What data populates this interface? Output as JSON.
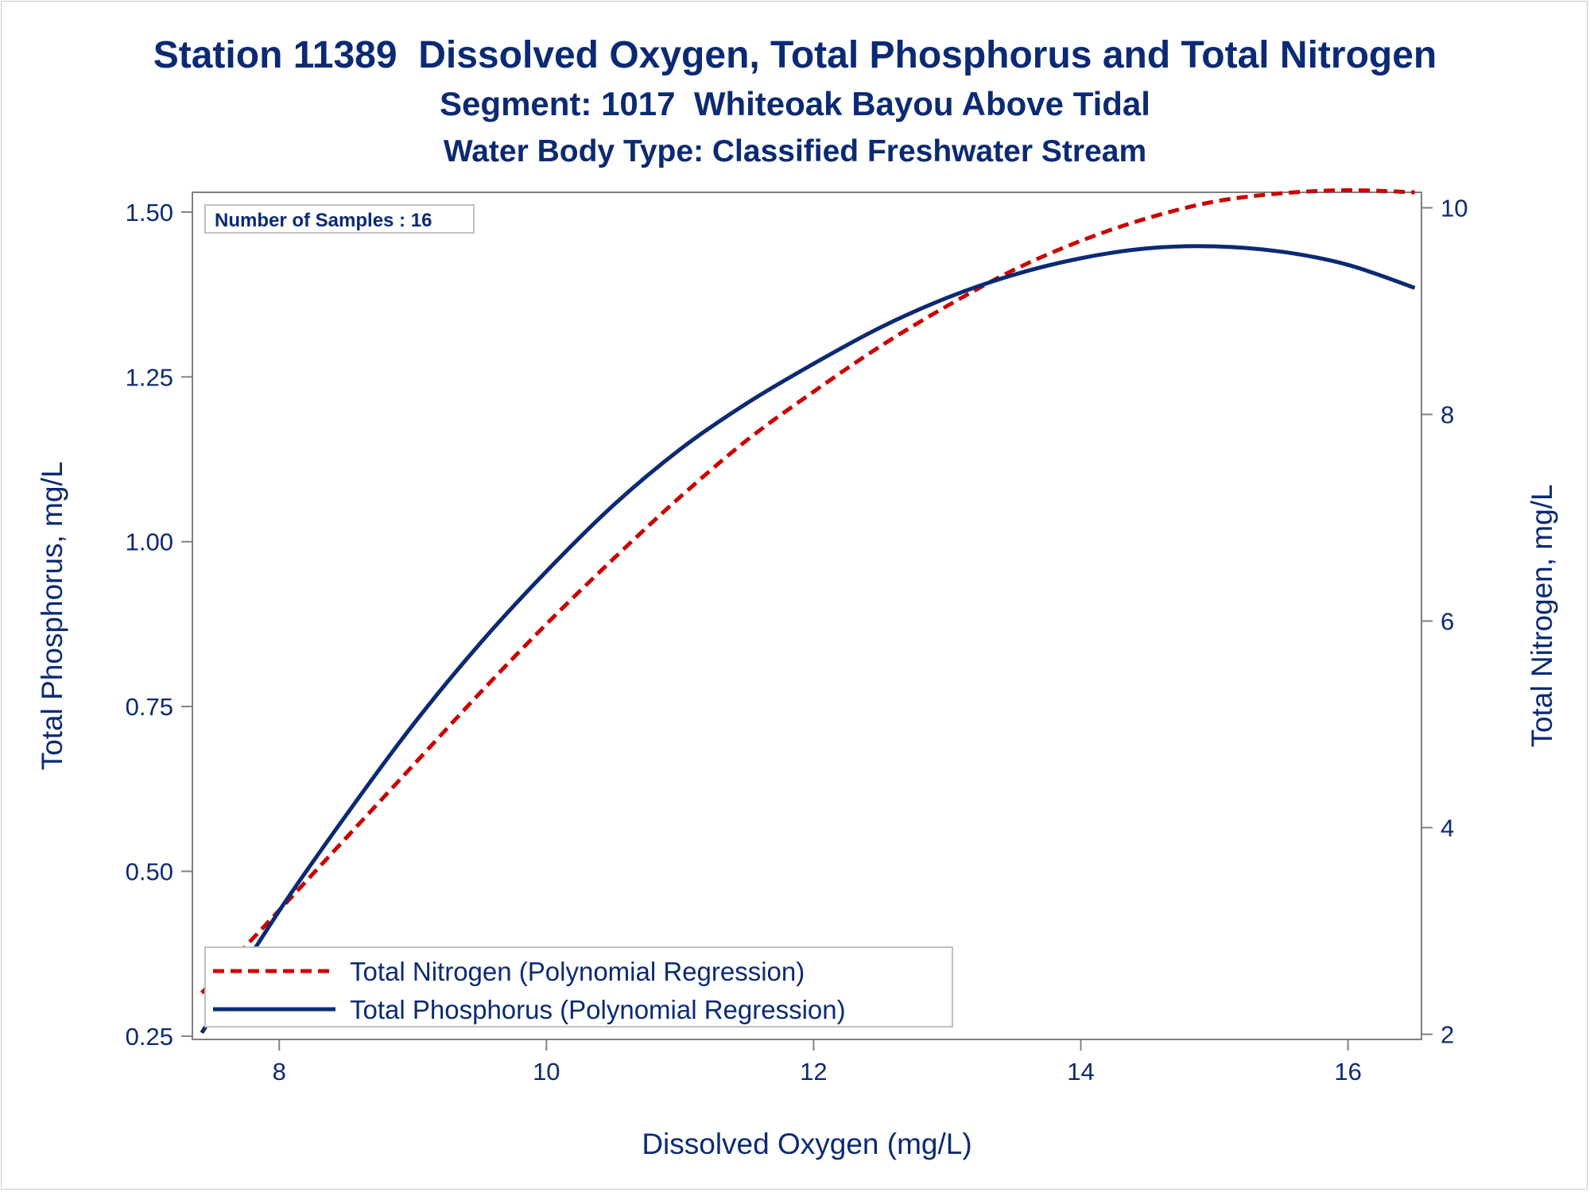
{
  "titles": {
    "line1": "Station 11389  Dissolved Oxygen, Total Phosphorus and Total Nitrogen",
    "line2": "Segment: 1017  Whiteoak Bayou Above Tidal",
    "line3": "Water Body Type: Classified Freshwater Stream"
  },
  "inset": {
    "label": "Number of Samples : 16"
  },
  "colors": {
    "text": "#0b2a73",
    "nitrogen": "#cc0000",
    "phosphorus": "#0b2a73",
    "axis": "#808080"
  },
  "chart_data": {
    "type": "line",
    "xlabel": "Dissolved Oxygen (mg/L)",
    "ylabel": "Total Phosphorus, mg/L",
    "y2label": "Total Nitrogen, mg/L",
    "xlim": [
      7.35,
      16.55
    ],
    "ylim": [
      0.245,
      1.53
    ],
    "y2lim": [
      1.95,
      10.15
    ],
    "xticks": [
      8,
      10,
      12,
      14,
      16
    ],
    "yticks": [
      0.25,
      0.5,
      0.75,
      1.0,
      1.25,
      1.5
    ],
    "ytick_labels": [
      "0.25",
      "0.50",
      "0.75",
      "1.00",
      "1.25",
      "1.50"
    ],
    "y2ticks": [
      2,
      4,
      6,
      8,
      10
    ],
    "grid": false,
    "legend_position": "bottom-left",
    "series": [
      {
        "name": "Total Nitrogen (Polynomial Regression)",
        "axis": "right",
        "style": "dashed",
        "color": "#cc0000",
        "x": [
          7.42,
          8.0,
          8.5,
          9.0,
          9.5,
          10.0,
          10.5,
          11.0,
          11.5,
          12.0,
          12.5,
          13.0,
          13.5,
          14.0,
          14.5,
          15.0,
          15.5,
          16.0,
          16.5
        ],
        "y": [
          2.4,
          3.2,
          3.9,
          4.6,
          5.3,
          5.97,
          6.6,
          7.2,
          7.75,
          8.22,
          8.66,
          9.05,
          9.4,
          9.68,
          9.9,
          10.06,
          10.14,
          10.17,
          10.15
        ]
      },
      {
        "name": "Total Phosphorus (Polynomial Regression)",
        "axis": "left",
        "style": "solid",
        "color": "#0b2a73",
        "x": [
          7.42,
          8.0,
          8.5,
          9.0,
          9.5,
          10.0,
          10.5,
          11.0,
          11.5,
          12.0,
          12.5,
          13.0,
          13.5,
          14.0,
          14.5,
          15.0,
          15.5,
          16.0,
          16.5
        ],
        "y": [
          0.255,
          0.44,
          0.585,
          0.722,
          0.845,
          0.955,
          1.055,
          1.14,
          1.21,
          1.27,
          1.325,
          1.37,
          1.405,
          1.43,
          1.445,
          1.448,
          1.44,
          1.42,
          1.385
        ]
      }
    ]
  }
}
